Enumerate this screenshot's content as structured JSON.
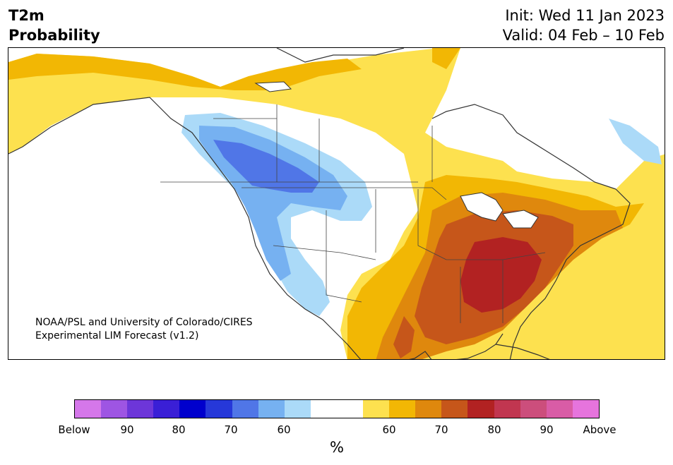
{
  "header": {
    "title_line1": "T2m",
    "title_line2": "Probability",
    "init_label": "Init: Wed 11 Jan 2023",
    "valid_label": "Valid: 04 Feb – 10 Feb"
  },
  "map": {
    "credit_line1": "NOAA/PSL and University of Colorado/CIRES",
    "credit_line2": "Experimental LIM Forecast (v1.2)",
    "colors": {
      "blue_light": "#abdaf8",
      "blue_mid": "#76b1f1",
      "blue_dark": "#5076e7",
      "yellow": "#fde14f",
      "gold": "#f2b704",
      "orange": "#df880d",
      "rust": "#c6561a",
      "red": "#b22222",
      "land_outline": "#333333"
    }
  },
  "colorbar": {
    "segments": [
      "#d577ea",
      "#9e55e3",
      "#6d36d9",
      "#3a1fd6",
      "#0000cd",
      "#2638d9",
      "#5076e7",
      "#76b1f1",
      "#abdaf8",
      "#ffffff",
      "#ffffff",
      "#fde14f",
      "#f2b704",
      "#df880d",
      "#c6561a",
      "#b22222",
      "#c13650",
      "#cc4e7c",
      "#d95ca6",
      "#e674dd"
    ],
    "tick_labels": [
      "Below",
      "90",
      "80",
      "70",
      "60",
      "60",
      "70",
      "80",
      "90",
      "Above"
    ],
    "unit": "%"
  }
}
